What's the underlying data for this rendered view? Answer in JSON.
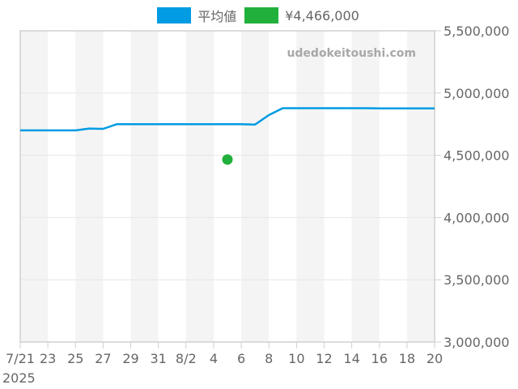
{
  "legend": {
    "items": [
      {
        "label": "平均値",
        "color": "#009be3"
      },
      {
        "label": "¥4,466,000",
        "color": "#22b03c"
      }
    ]
  },
  "watermark": "udedokeitoushi.com",
  "chart_data": {
    "type": "line",
    "title": "",
    "xlabel": "",
    "ylabel": "",
    "year_label": "2025",
    "x_tick_labels": [
      "7/21",
      "23",
      "25",
      "27",
      "29",
      "31",
      "8/2",
      "4",
      "6",
      "8",
      "10",
      "12",
      "14",
      "16",
      "18",
      "20"
    ],
    "y_tick_labels": [
      "5,500,000",
      "5,000,000",
      "4,500,000",
      "4,000,000",
      "3,500,000",
      "3,000,000"
    ],
    "ylim": [
      3000000,
      5500000
    ],
    "xlim": [
      "2025-07-21",
      "2025-08-20"
    ],
    "grid": true,
    "legend_position": "top",
    "series": [
      {
        "name": "平均値",
        "type": "line",
        "color": "#009be3",
        "x": [
          "7/21",
          "7/22",
          "7/23",
          "7/24",
          "7/25",
          "7/26",
          "7/27",
          "7/28",
          "7/29",
          "7/30",
          "7/31",
          "8/1",
          "8/2",
          "8/3",
          "8/4",
          "8/5",
          "8/6",
          "8/7",
          "8/8",
          "8/9",
          "8/10",
          "8/11",
          "8/12",
          "8/13",
          "8/14",
          "8/15",
          "8/16",
          "8/17",
          "8/18",
          "8/19",
          "8/20"
        ],
        "values": [
          4700000,
          4700000,
          4700000,
          4700000,
          4700000,
          4715000,
          4712000,
          4750000,
          4750000,
          4750000,
          4750000,
          4750000,
          4750000,
          4750000,
          4750000,
          4750000,
          4750000,
          4747000,
          4823000,
          4878000,
          4878000,
          4878000,
          4878000,
          4878000,
          4878000,
          4878000,
          4877000,
          4877000,
          4877000,
          4877000,
          4877000
        ]
      },
      {
        "name": "¥4,466,000",
        "type": "scatter",
        "color": "#22b03c",
        "x": [
          "8/5"
        ],
        "values": [
          4466000
        ]
      }
    ]
  }
}
